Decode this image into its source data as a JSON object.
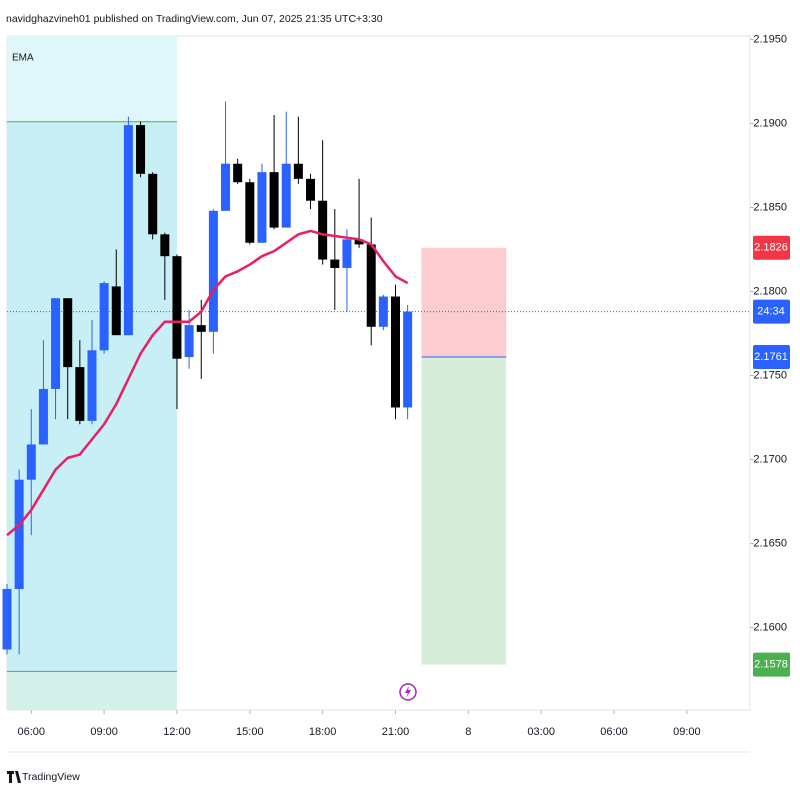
{
  "header": "navidghazvineh01 published on TradingView.com, Jun 07, 2025 21:35 UTC+3:30",
  "footer": "TradingView",
  "chart_data": {
    "type": "candlestick",
    "indicator_label": "EMA",
    "x": [
      5,
      5.5,
      6,
      6.5,
      7,
      7.5,
      8,
      8.5,
      9,
      9.5,
      10,
      10.5,
      11,
      11.5,
      12,
      12.5,
      13,
      13.5,
      14,
      14.5,
      15,
      15.5,
      16,
      16.5,
      17,
      17.5,
      18,
      18.5,
      19,
      19.5,
      20,
      20.5,
      21,
      21.5
    ],
    "open": [
      2.1587,
      2.1623,
      2.1688,
      2.1709,
      2.1742,
      2.1796,
      2.1755,
      2.1723,
      2.1765,
      2.1803,
      2.1774,
      2.1899,
      2.187,
      2.1834,
      2.1821,
      2.1761,
      2.178,
      2.1776,
      2.1848,
      2.1876,
      2.1865,
      2.1829,
      2.1871,
      2.1838,
      2.1876,
      2.1867,
      2.1854,
      2.1819,
      2.1814,
      2.1831,
      2.1828,
      2.1779,
      2.1797,
      2.1731
    ],
    "high": [
      2.1626,
      2.1694,
      2.173,
      2.1771,
      2.1796,
      2.1796,
      2.1771,
      2.1783,
      2.1806,
      2.1825,
      2.1904,
      2.1901,
      2.1871,
      2.1835,
      2.1822,
      2.1789,
      2.1795,
      2.1849,
      2.1913,
      2.1879,
      2.1867,
      2.1876,
      2.1905,
      2.1907,
      2.1904,
      2.187,
      2.189,
      2.1849,
      2.1837,
      2.1867,
      2.1844,
      2.1798,
      2.1804,
      2.1792
    ],
    "low": [
      2.1584,
      2.1584,
      2.1655,
      2.1709,
      2.1724,
      2.1724,
      2.1721,
      2.1721,
      2.1763,
      2.1774,
      2.1774,
      2.1868,
      2.1831,
      2.1795,
      2.173,
      2.1754,
      2.1748,
      2.1763,
      2.1848,
      2.1864,
      2.1828,
      2.1829,
      2.1837,
      2.1838,
      2.1864,
      2.1849,
      2.1816,
      2.1789,
      2.1788,
      2.1826,
      2.1768,
      2.1777,
      2.1724,
      2.1724
    ],
    "close": [
      2.1623,
      2.1688,
      2.1709,
      2.1742,
      2.1796,
      2.1755,
      2.1723,
      2.1765,
      2.1805,
      2.1774,
      2.1899,
      2.187,
      2.1834,
      2.1821,
      2.176,
      2.178,
      2.1776,
      2.1848,
      2.1876,
      2.1865,
      2.1829,
      2.1871,
      2.1838,
      2.1876,
      2.1867,
      2.1854,
      2.1819,
      2.1814,
      2.1831,
      2.1828,
      2.1779,
      2.1797,
      2.1731,
      2.1788
    ],
    "up_color": "#2962ff",
    "down_color": "#000000",
    "ema": {
      "color": "#e91e63",
      "values": [
        2.1655,
        2.1661,
        2.167,
        2.1682,
        2.1694,
        2.1701,
        2.1703,
        2.1712,
        2.1721,
        2.1733,
        2.1748,
        2.1763,
        2.1774,
        2.1782,
        2.1782,
        2.1782,
        2.1788,
        2.1801,
        2.1809,
        2.1812,
        2.1816,
        2.1821,
        2.1824,
        2.1829,
        2.1834,
        2.1836,
        2.1834,
        2.1833,
        2.1832,
        2.1831,
        2.1828,
        2.1818,
        2.1809,
        2.1805
      ]
    },
    "session_box": {
      "x": [
        5,
        12
      ],
      "high": 2.1901,
      "low": 2.1574
    },
    "position": {
      "x": [
        22.07,
        25.56
      ],
      "entry": 2.1761,
      "stop": 2.1826,
      "target": 2.1578
    },
    "last_price": 2.1788,
    "countdown": "24:34",
    "xlim": [
      5,
      35.6
    ],
    "xticks": [
      {
        "value": 6,
        "label": "06:00"
      },
      {
        "value": 9,
        "label": "09:00"
      },
      {
        "value": 12,
        "label": "12:00"
      },
      {
        "value": 15,
        "label": "15:00"
      },
      {
        "value": 18,
        "label": "18:00"
      },
      {
        "value": 21,
        "label": "21:00"
      },
      {
        "value": 24,
        "label": "8"
      },
      {
        "value": 27,
        "label": "03:00"
      },
      {
        "value": 30,
        "label": "06:00"
      },
      {
        "value": 33,
        "label": "09:00"
      }
    ],
    "ylim": [
      2.1551,
      2.1952
    ],
    "yticks": [
      {
        "value": 2.16,
        "label": "2.1600"
      },
      {
        "value": 2.165,
        "label": "2.1650"
      },
      {
        "value": 2.17,
        "label": "2.1700"
      },
      {
        "value": 2.175,
        "label": "2.1750"
      },
      {
        "value": 2.18,
        "label": "2.1800"
      },
      {
        "value": 2.185,
        "label": "2.1850"
      },
      {
        "value": 2.19,
        "label": "2.1900"
      },
      {
        "value": 2.195,
        "label": "2.1950"
      }
    ]
  }
}
